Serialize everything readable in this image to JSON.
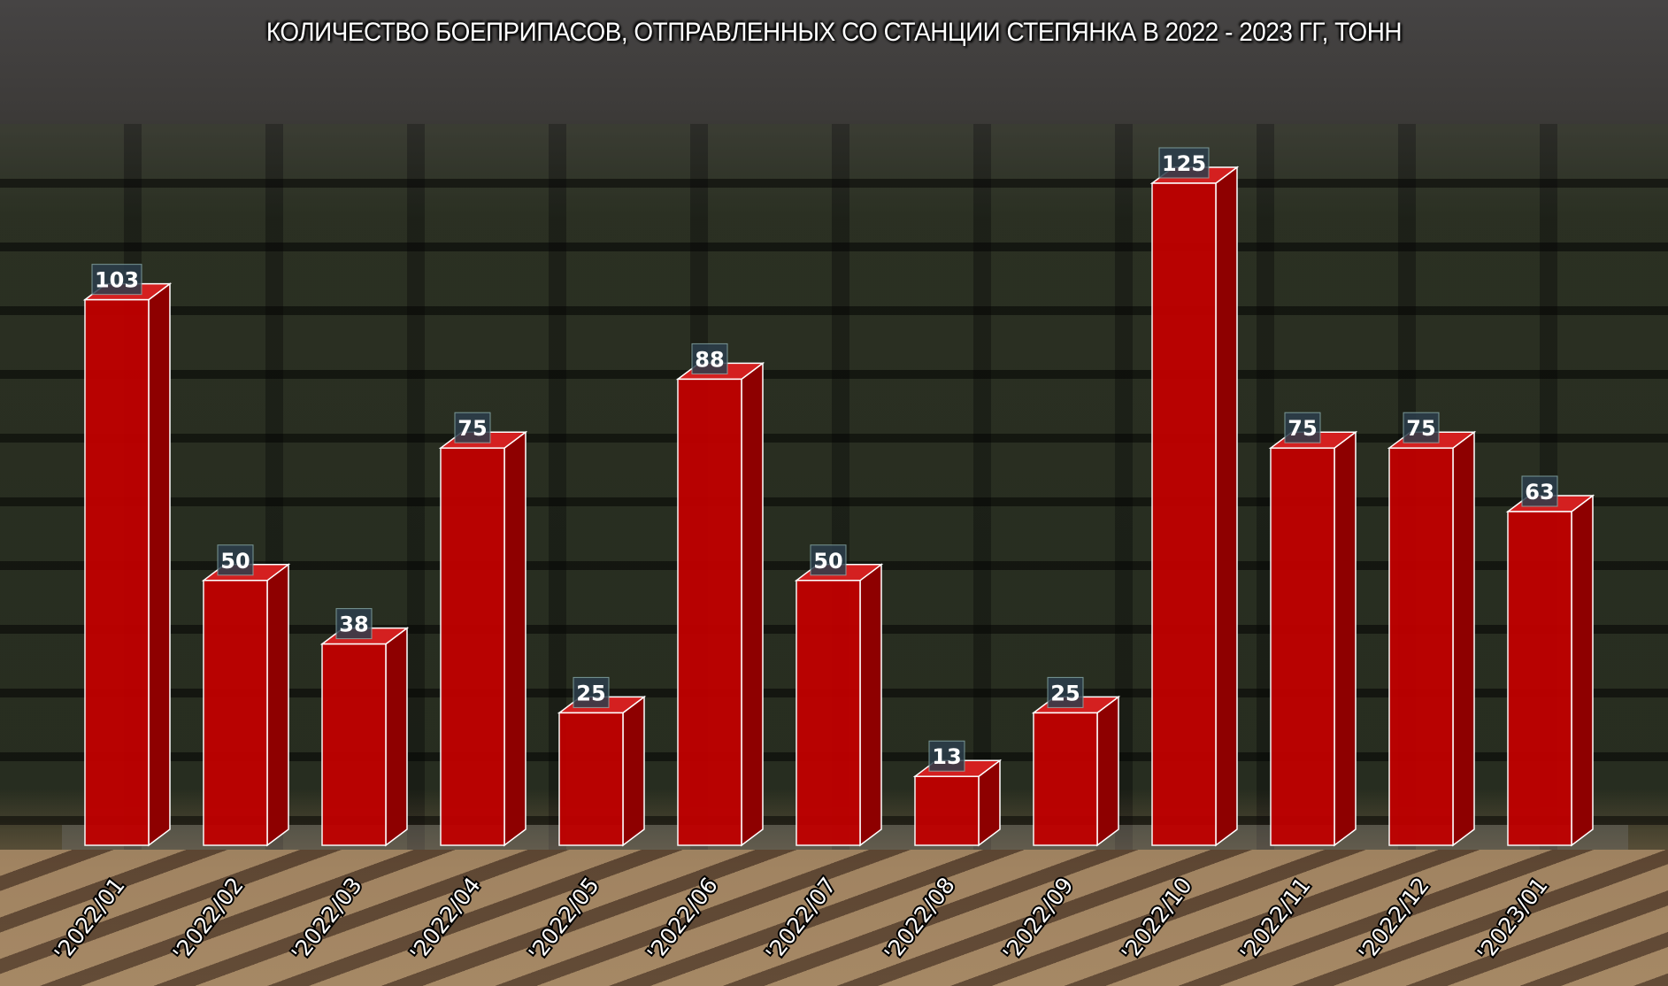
{
  "chart_data": {
    "type": "bar",
    "title": "КОЛИЧЕСТВО БОЕПРИПАСОВ, ОТПРАВЛЕННЫХ СО СТАНЦИИ СТЕПЯНКА В 2022 - 2023 ГГ, ТОНН",
    "categories": [
      "'2022/01",
      "'2022/02",
      "'2022/03",
      "'2022/04",
      "'2022/05",
      "'2022/06",
      "'2022/07",
      "'2022/08",
      "'2022/09",
      "'2022/10",
      "'2022/11",
      "'2022/12",
      "'2023/01"
    ],
    "values": [
      103,
      50,
      38,
      75,
      25,
      88,
      50,
      13,
      25,
      125,
      75,
      75,
      63
    ],
    "xlabel": "",
    "ylabel": "",
    "ylim": [
      0,
      125
    ],
    "grid": false,
    "bar_style": "3d",
    "colors": {
      "bar_front": "#c00000",
      "bar_side": "#8e0000",
      "bar_top": "#d42020",
      "label_box": "#2c3e4c"
    }
  }
}
